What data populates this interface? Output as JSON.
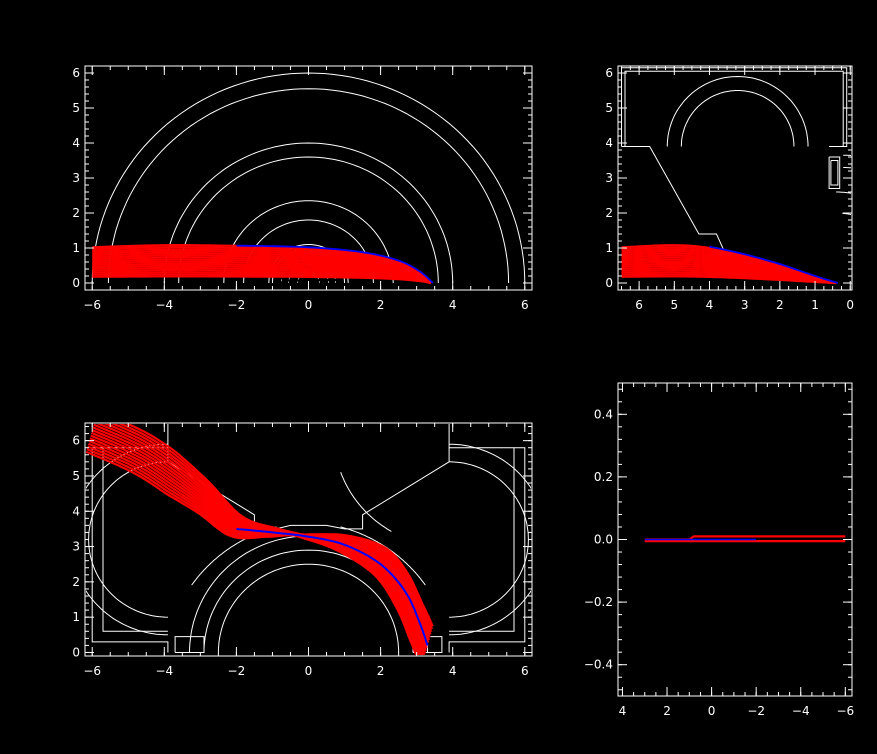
{
  "colors": {
    "background": "#000000",
    "axes": "#ffffff",
    "geometry": "#ffffff",
    "traj_red": "#ff0000",
    "traj_blue": "#0000ff"
  },
  "chart_data": [
    {
      "type": "line",
      "id": "top-left",
      "xlim": [
        -6.2,
        6.2
      ],
      "ylim": [
        -0.2,
        6.2
      ],
      "xticks": [
        -6,
        -4,
        -2,
        0,
        2,
        4,
        6
      ],
      "xtick_labels": [
        "−6",
        "−4",
        "−2",
        "0",
        "2",
        "4",
        "6"
      ],
      "yticks": [
        0,
        1,
        2,
        3,
        4,
        5,
        6
      ],
      "ytick_labels": [
        "0",
        "1",
        "2",
        "3",
        "4",
        "5",
        "6"
      ],
      "series": [
        {
          "color": "red",
          "x": [
            -6.0,
            -4.0,
            -2.0,
            0.0,
            1.5,
            2.5,
            3.1,
            3.4
          ],
          "y": [
            1.02,
            1.08,
            1.06,
            1.0,
            0.85,
            0.62,
            0.3,
            0.0
          ]
        },
        {
          "color": "blue",
          "x": [
            -2.0,
            0.0,
            1.5,
            2.5,
            3.1,
            3.45
          ],
          "y": [
            1.07,
            1.02,
            0.88,
            0.64,
            0.32,
            0.0
          ]
        }
      ]
    },
    {
      "type": "line",
      "id": "top-right",
      "xlim": [
        6.6,
        -0.05
      ],
      "ylim": [
        -0.2,
        6.2
      ],
      "xticks": [
        6,
        5,
        4,
        3,
        2,
        1,
        0
      ],
      "xtick_labels": [
        "6",
        "5",
        "4",
        "3",
        "2",
        "1",
        "0"
      ],
      "yticks": [
        0,
        1,
        2,
        3,
        4,
        5,
        6
      ],
      "ytick_labels": [
        "0",
        "1",
        "2",
        "3",
        "4",
        "5",
        "6"
      ],
      "series": [
        {
          "color": "red",
          "x": [
            6.5,
            5.0,
            4.0,
            3.0,
            2.0,
            1.0,
            0.4
          ],
          "y": [
            1.02,
            1.08,
            1.0,
            0.78,
            0.5,
            0.18,
            0.0
          ]
        },
        {
          "color": "blue",
          "x": [
            4.0,
            3.0,
            2.0,
            1.0,
            0.35
          ],
          "y": [
            1.04,
            0.82,
            0.54,
            0.2,
            0.0
          ]
        }
      ]
    },
    {
      "type": "line",
      "id": "bottom-left",
      "xlim": [
        -6.2,
        6.2
      ],
      "ylim": [
        -0.1,
        6.5
      ],
      "xticks": [
        -6,
        -4,
        -2,
        0,
        2,
        4,
        6
      ],
      "xtick_labels": [
        "−6",
        "−4",
        "−2",
        "0",
        "2",
        "4",
        "6"
      ],
      "yticks": [
        0,
        1,
        2,
        3,
        4,
        5,
        6
      ],
      "ytick_labels": [
        "0",
        "1",
        "2",
        "3",
        "4",
        "5",
        "6"
      ],
      "series": [
        {
          "color": "red",
          "x": [
            -6.0,
            -4.5,
            -3.0,
            -2.0,
            -1.0,
            0.0,
            1.0,
            2.0,
            2.6,
            3.0,
            3.3
          ],
          "y": [
            6.3,
            5.6,
            4.5,
            3.6,
            3.4,
            3.3,
            3.1,
            2.6,
            1.8,
            0.9,
            0.2
          ]
        },
        {
          "color": "blue",
          "x": [
            -2.0,
            -1.0,
            0.0,
            1.0,
            2.0,
            2.7,
            3.1,
            3.3
          ],
          "y": [
            3.5,
            3.4,
            3.28,
            3.05,
            2.5,
            1.7,
            0.8,
            0.2
          ]
        }
      ]
    },
    {
      "type": "line",
      "id": "bottom-right",
      "xlim": [
        4.2,
        -6.3
      ],
      "ylim": [
        -0.5,
        0.5
      ],
      "xticks": [
        4,
        2,
        0,
        -2,
        -4,
        -6
      ],
      "xtick_labels": [
        "4",
        "2",
        "0",
        "−2",
        "−4",
        "−6"
      ],
      "yticks": [
        -0.4,
        -0.2,
        0.0,
        0.2,
        0.4
      ],
      "ytick_labels": [
        "−0.4",
        "−0.2",
        "0.0",
        "0.2",
        "0.4"
      ],
      "series": [
        {
          "color": "red",
          "x": [
            3.0,
            1.0,
            0.8,
            -6.0
          ],
          "y": [
            0.0,
            0.0,
            0.01,
            0.01
          ]
        },
        {
          "color": "red",
          "x": [
            3.0,
            -6.0
          ],
          "y": [
            -0.005,
            -0.005
          ]
        },
        {
          "color": "blue",
          "x": [
            3.0,
            0.0,
            -1.5,
            -2.0
          ],
          "y": [
            0.0,
            0.0,
            0.0,
            0.0
          ]
        }
      ]
    }
  ]
}
